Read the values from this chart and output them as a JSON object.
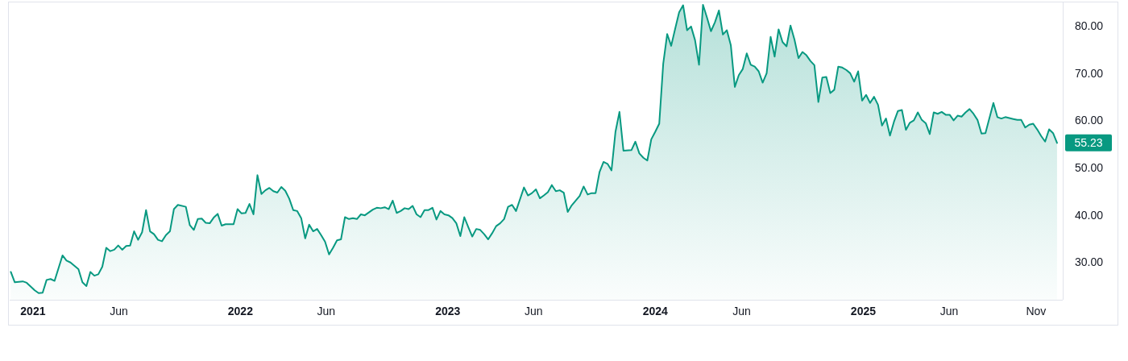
{
  "chart_data": {
    "type": "area",
    "color": "#089981",
    "x": [
      "2020-11-23",
      "2020-11-30",
      "2020-12-14",
      "2020-12-21",
      "2021-01-04",
      "2021-01-11",
      "2021-01-18",
      "2021-01-25",
      "2021-02-01",
      "2021-02-08",
      "2021-02-22",
      "2021-03-01",
      "2021-03-08",
      "2021-03-22",
      "2021-03-29",
      "2021-04-05",
      "2021-04-12",
      "2021-04-19",
      "2021-04-26",
      "2021-05-03",
      "2021-05-10",
      "2021-05-17",
      "2021-05-24",
      "2021-05-31",
      "2021-06-07",
      "2021-06-14",
      "2021-06-21",
      "2021-06-28",
      "2021-07-05",
      "2021-07-12",
      "2021-07-19",
      "2021-07-26",
      "2021-08-02",
      "2021-08-09",
      "2021-08-16",
      "2021-08-23",
      "2021-08-30",
      "2021-09-06",
      "2021-09-13",
      "2021-09-27",
      "2021-10-04",
      "2021-10-11",
      "2021-10-18",
      "2021-10-25",
      "2021-11-01",
      "2021-11-08",
      "2021-11-15",
      "2021-11-22",
      "2021-11-29",
      "2021-12-06",
      "2021-12-20",
      "2021-12-27",
      "2022-01-03",
      "2022-01-10",
      "2022-01-17",
      "2022-01-24",
      "2022-01-31",
      "2022-02-07",
      "2022-02-14",
      "2022-02-21",
      "2022-02-28",
      "2022-03-07",
      "2022-03-14",
      "2022-03-21",
      "2022-03-28",
      "2022-04-04",
      "2022-04-11",
      "2022-04-18",
      "2022-04-25",
      "2022-05-02",
      "2022-05-09",
      "2022-05-16",
      "2022-05-23",
      "2022-05-30",
      "2022-06-06",
      "2022-06-13",
      "2022-06-20",
      "2022-06-27",
      "2022-07-04",
      "2022-07-11",
      "2022-07-18",
      "2022-07-25",
      "2022-08-01",
      "2022-08-08",
      "2022-08-22",
      "2022-08-29",
      "2022-09-05",
      "2022-09-12",
      "2022-09-19",
      "2022-09-26",
      "2022-10-03",
      "2022-10-10",
      "2022-10-17",
      "2022-10-24",
      "2022-10-31",
      "2022-11-07",
      "2022-11-14",
      "2022-11-21",
      "2022-11-28",
      "2022-12-05",
      "2022-12-12",
      "2022-12-19",
      "2022-12-26",
      "2023-01-02",
      "2023-01-09",
      "2023-01-16",
      "2023-01-23",
      "2023-01-30",
      "2023-02-06",
      "2023-02-13",
      "2023-02-20",
      "2023-02-27",
      "2023-03-06",
      "2023-03-13",
      "2023-03-20",
      "2023-03-27",
      "2023-04-03",
      "2023-04-10",
      "2023-04-17",
      "2023-04-24",
      "2023-05-01",
      "2023-05-08",
      "2023-05-15",
      "2023-05-22",
      "2023-05-29",
      "2023-06-05",
      "2023-06-12",
      "2023-06-19",
      "2023-06-26",
      "2023-07-03",
      "2023-07-10",
      "2023-07-17",
      "2023-07-24",
      "2023-07-31",
      "2023-08-07",
      "2023-08-21",
      "2023-08-28",
      "2023-09-04",
      "2023-09-11",
      "2023-09-18",
      "2023-09-25",
      "2023-10-02",
      "2023-10-09",
      "2023-10-16",
      "2023-10-23",
      "2023-10-30",
      "2023-11-06",
      "2023-11-20",
      "2023-11-27",
      "2023-12-04",
      "2023-12-11",
      "2023-12-18",
      "2023-12-25",
      "2024-01-01",
      "2024-01-08",
      "2024-01-15",
      "2024-01-22",
      "2024-01-29",
      "2024-02-05",
      "2024-02-12",
      "2024-02-19",
      "2024-02-26",
      "2024-03-04",
      "2024-03-11",
      "2024-03-18",
      "2024-03-25",
      "2024-04-01",
      "2024-04-08",
      "2024-04-15",
      "2024-04-22",
      "2024-04-29",
      "2024-05-06",
      "2024-05-13",
      "2024-05-20",
      "2024-05-27",
      "2024-06-03",
      "2024-06-10",
      "2024-06-17",
      "2024-06-24",
      "2024-07-01",
      "2024-07-08",
      "2024-07-15",
      "2024-07-22",
      "2024-07-29",
      "2024-08-05",
      "2024-08-12",
      "2024-08-19",
      "2024-08-26",
      "2024-09-02",
      "2024-09-09",
      "2024-09-16",
      "2024-09-23",
      "2024-09-30",
      "2024-10-07",
      "2024-10-14",
      "2024-10-21",
      "2024-10-28",
      "2024-11-04",
      "2024-11-11",
      "2024-11-18",
      "2024-11-25",
      "2024-12-02",
      "2024-12-09",
      "2024-12-16",
      "2024-12-23",
      "2024-12-30",
      "2025-01-06",
      "2025-01-13",
      "2025-01-20",
      "2025-01-27",
      "2025-02-03",
      "2025-02-10",
      "2025-02-17",
      "2025-02-24",
      "2025-03-03",
      "2025-03-10",
      "2025-03-17",
      "2025-03-24",
      "2025-03-31",
      "2025-04-07",
      "2025-04-14",
      "2025-04-21",
      "2025-04-28",
      "2025-05-05",
      "2025-05-12",
      "2025-05-19",
      "2025-05-26",
      "2025-06-02",
      "2025-06-09",
      "2025-06-16",
      "2025-06-23",
      "2025-06-30",
      "2025-07-07",
      "2025-07-14",
      "2025-07-21",
      "2025-07-28",
      "2025-08-04",
      "2025-08-18",
      "2025-08-25",
      "2025-09-01",
      "2025-09-08",
      "2025-09-15",
      "2025-09-22",
      "2025-09-29",
      "2025-10-06",
      "2025-10-13",
      "2025-10-20",
      "2025-10-27",
      "2025-11-03",
      "2025-11-10",
      "2025-11-17",
      "2025-11-24",
      "2025-12-01",
      "2025-12-08"
    ],
    "values": [
      27.9,
      25.7,
      25.9,
      25.6,
      24.0,
      23.4,
      23.5,
      26.2,
      26.4,
      26.0,
      31.4,
      30.3,
      29.9,
      28.5,
      25.7,
      24.9,
      27.9,
      27.1,
      27.4,
      29.0,
      33.0,
      32.3,
      32.6,
      33.5,
      32.6,
      33.4,
      33.5,
      36.5,
      34.7,
      36.3,
      41.0,
      36.5,
      35.9,
      34.7,
      34.4,
      35.7,
      36.5,
      41.2,
      42.1,
      41.7,
      37.8,
      36.8,
      39.1,
      39.2,
      38.3,
      38.2,
      39.4,
      40.2,
      37.7,
      38.0,
      38.0,
      41.2,
      40.3,
      40.4,
      42.3,
      40.1,
      48.4,
      44.4,
      45.2,
      45.7,
      45.0,
      44.7,
      45.9,
      45.1,
      43.4,
      41.0,
      40.8,
      39.3,
      35.0,
      37.9,
      36.5,
      37.0,
      35.7,
      34.3,
      31.6,
      33.0,
      34.6,
      34.8,
      39.5,
      39.1,
      39.3,
      39.1,
      40.1,
      39.9,
      41.1,
      41.5,
      41.4,
      41.6,
      41.2,
      43.0,
      40.4,
      40.8,
      41.4,
      41.2,
      41.9,
      40.1,
      39.5,
      41.0,
      41.0,
      41.5,
      39.0,
      40.8,
      40.1,
      39.9,
      39.3,
      38.2,
      35.5,
      39.5,
      37.4,
      35.4,
      37.0,
      36.8,
      35.9,
      34.8,
      36.1,
      37.6,
      38.2,
      39.1,
      41.7,
      42.1,
      40.8,
      43.3,
      45.8,
      44.1,
      44.6,
      45.4,
      43.5,
      44.1,
      44.8,
      46.3,
      45.0,
      45.2,
      44.7,
      40.6,
      42.0,
      44.0,
      46.0,
      44.3,
      44.6,
      44.6,
      49.1,
      51.2,
      50.8,
      49.4,
      57.6,
      61.8,
      53.6,
      53.7,
      55.5,
      53.0,
      52.1,
      51.5,
      56.0,
      57.6,
      59.3,
      72.0,
      78.3,
      75.8,
      79.4,
      82.9,
      84.4,
      79.1,
      79.9,
      77.0,
      71.8,
      84.5,
      81.8,
      78.9,
      80.8,
      83.3,
      78.2,
      79.1,
      75.9,
      67.1,
      69.6,
      70.9,
      74.2,
      71.8,
      71.4,
      70.4,
      68.0,
      70.0,
      77.7,
      73.5,
      79.3,
      76.6,
      75.7,
      80.1,
      77.1,
      73.2,
      74.5,
      73.8,
      72.6,
      71.7,
      63.9,
      69.1,
      69.2,
      65.8,
      66.5,
      71.4,
      71.2,
      70.7,
      70.0,
      68.2,
      70.4,
      64.2,
      65.4,
      63.7,
      65.0,
      63.3,
      58.9,
      60.4,
      56.8,
      59.7,
      62.0,
      62.2,
      58.0,
      59.5,
      60.0,
      61.7,
      60.1,
      59.4,
      57.1,
      61.7,
      61.4,
      61.8,
      61.2,
      61.2,
      60.0,
      61.0,
      60.8,
      61.7,
      62.4,
      61.4,
      60.1,
      57.2,
      57.3,
      63.7,
      60.7,
      60.4,
      60.7,
      60.5,
      60.3,
      60.1,
      60.1,
      58.5,
      59.1,
      59.3,
      58.1,
      56.7,
      55.5,
      58.1,
      57.3,
      55.23
    ],
    "xlim": [
      "2020-11-21",
      "2025-12-18"
    ],
    "ylim": [
      22,
      85
    ],
    "xticks": [
      {
        "value": "2021-01-01",
        "label": "2021"
      },
      {
        "value": "2021-06-01",
        "label": "Jun"
      },
      {
        "value": "2022-01-01",
        "label": "2022"
      },
      {
        "value": "2022-06-01",
        "label": "Jun"
      },
      {
        "value": "2023-01-01",
        "label": "2023"
      },
      {
        "value": "2023-06-01",
        "label": "Jun"
      },
      {
        "value": "2024-01-01",
        "label": "2024"
      },
      {
        "value": "2024-06-01",
        "label": "Jun"
      },
      {
        "value": "2025-01-01",
        "label": "2025"
      },
      {
        "value": "2025-06-01",
        "label": "Jun"
      },
      {
        "value": "2025-11-01",
        "label": "Nov"
      }
    ],
    "yticks": [
      {
        "value": 30,
        "label": "30.00"
      },
      {
        "value": 40,
        "label": "40.00"
      },
      {
        "value": 50,
        "label": "50.00"
      },
      {
        "value": 60,
        "label": "60.00"
      },
      {
        "value": 70,
        "label": "70.00"
      },
      {
        "value": 80,
        "label": "80.00"
      }
    ],
    "annotations": [
      {
        "text": "55.23",
        "x": "2025-12-08",
        "y": 55.23
      }
    ]
  }
}
